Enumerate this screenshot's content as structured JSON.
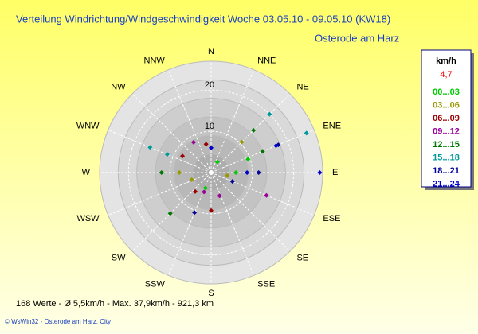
{
  "chart_data": {
    "type": "polar-scatter",
    "title": "Verteilung Windrichtung/Windgeschwindigkeit  Woche 03.05.10 - 09.05.10 (KW18)",
    "subtitle": "Osterode am Harz",
    "directions": [
      "N",
      "NNE",
      "NE",
      "ENE",
      "E",
      "ESE",
      "SE",
      "SSE",
      "S",
      "SSW",
      "SW",
      "WSW",
      "W",
      "WNW",
      "NW",
      "NNW"
    ],
    "rlim": [
      0,
      27
    ],
    "rticks": [
      10,
      20
    ],
    "legend_title": "km/h",
    "legend_note": "4,7",
    "series": [
      {
        "name": "00...03",
        "color": "#00cc00",
        "theta": [
          70,
          90,
          200,
          30
        ],
        "r": [
          9.5,
          6,
          4,
          3
        ]
      },
      {
        "name": "03...06",
        "color": "#999900",
        "theta": [
          45,
          270,
          250,
          100
        ],
        "r": [
          10.5,
          7.7,
          5,
          4
        ]
      },
      {
        "name": "06...09",
        "color": "#990000",
        "theta": [
          180,
          300,
          220,
          350
        ],
        "r": [
          9.2,
          8,
          6,
          7
        ]
      },
      {
        "name": "09...12",
        "color": "#990099",
        "theta": [
          112.5,
          330,
          160,
          200
        ],
        "r": [
          14.5,
          8.5,
          6,
          5
        ]
      },
      {
        "name": "12...15",
        "color": "#007700",
        "theta": [
          45,
          270,
          67.5,
          225
        ],
        "r": [
          14.5,
          12,
          13.5,
          14
        ]
      },
      {
        "name": "15...18",
        "color": "#009999",
        "theta": [
          292.5,
          45,
          67.5,
          292.5
        ],
        "r": [
          16,
          20,
          25,
          11.5
        ]
      },
      {
        "name": "18...21",
        "color": "#000099",
        "theta": [
          67.5,
          90,
          202.5,
          112.5
        ],
        "r": [
          17.6,
          11.5,
          10.5,
          5.6
        ]
      },
      {
        "name": "21...24",
        "color": "#0000cc",
        "theta": [
          90,
          67.5,
          90,
          0
        ],
        "r": [
          26.3,
          17,
          8.7,
          6
        ]
      }
    ],
    "footer": "168 Werte   -   Ø 5,5km/h   -   Max. 37,9km/h   -   921,3 km",
    "credit": "© WsWin32  -  Osterode am Harz, City"
  }
}
